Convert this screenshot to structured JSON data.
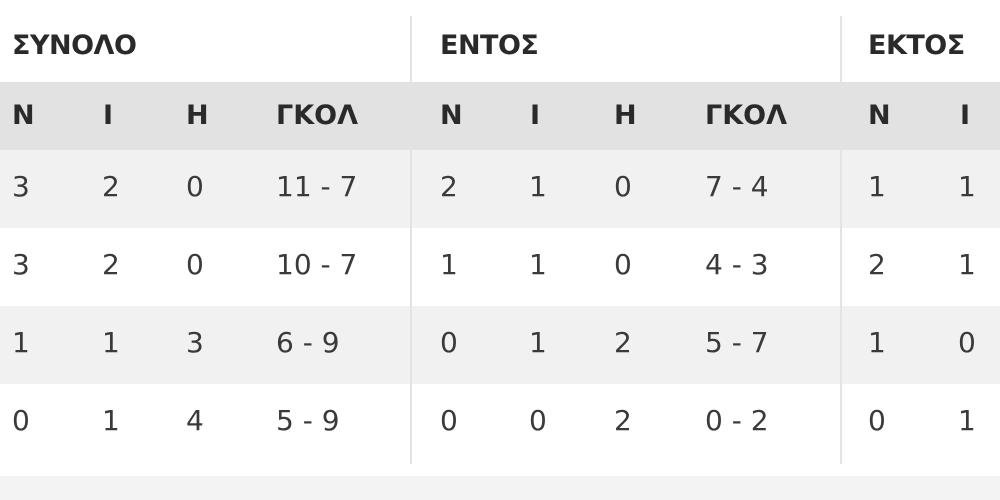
{
  "groups": {
    "total": "ΣΥΝΟΛΟ",
    "home": "ΕΝΤΟΣ",
    "away": "ΕΚΤΟΣ"
  },
  "columns": {
    "wins": "Ν",
    "draws": "Ι",
    "losses": "Η",
    "goals": "ΓΚΟΛ"
  },
  "rows": [
    {
      "total": {
        "w": "3",
        "d": "2",
        "l": "0",
        "goals": "11 - 7"
      },
      "home": {
        "w": "2",
        "d": "1",
        "l": "0",
        "goals": "7 - 4"
      },
      "away": {
        "w": "1",
        "d": "1"
      }
    },
    {
      "total": {
        "w": "3",
        "d": "2",
        "l": "0",
        "goals": "10 - 7"
      },
      "home": {
        "w": "1",
        "d": "1",
        "l": "0",
        "goals": "4 - 3"
      },
      "away": {
        "w": "2",
        "d": "1"
      }
    },
    {
      "total": {
        "w": "1",
        "d": "1",
        "l": "3",
        "goals": "6 - 9"
      },
      "home": {
        "w": "0",
        "d": "1",
        "l": "2",
        "goals": "5 - 7"
      },
      "away": {
        "w": "1",
        "d": "0"
      }
    },
    {
      "total": {
        "w": "0",
        "d": "1",
        "l": "4",
        "goals": "5 - 9"
      },
      "home": {
        "w": "0",
        "d": "0",
        "l": "2",
        "goals": "0 - 2"
      },
      "away": {
        "w": "0",
        "d": "1"
      }
    }
  ]
}
